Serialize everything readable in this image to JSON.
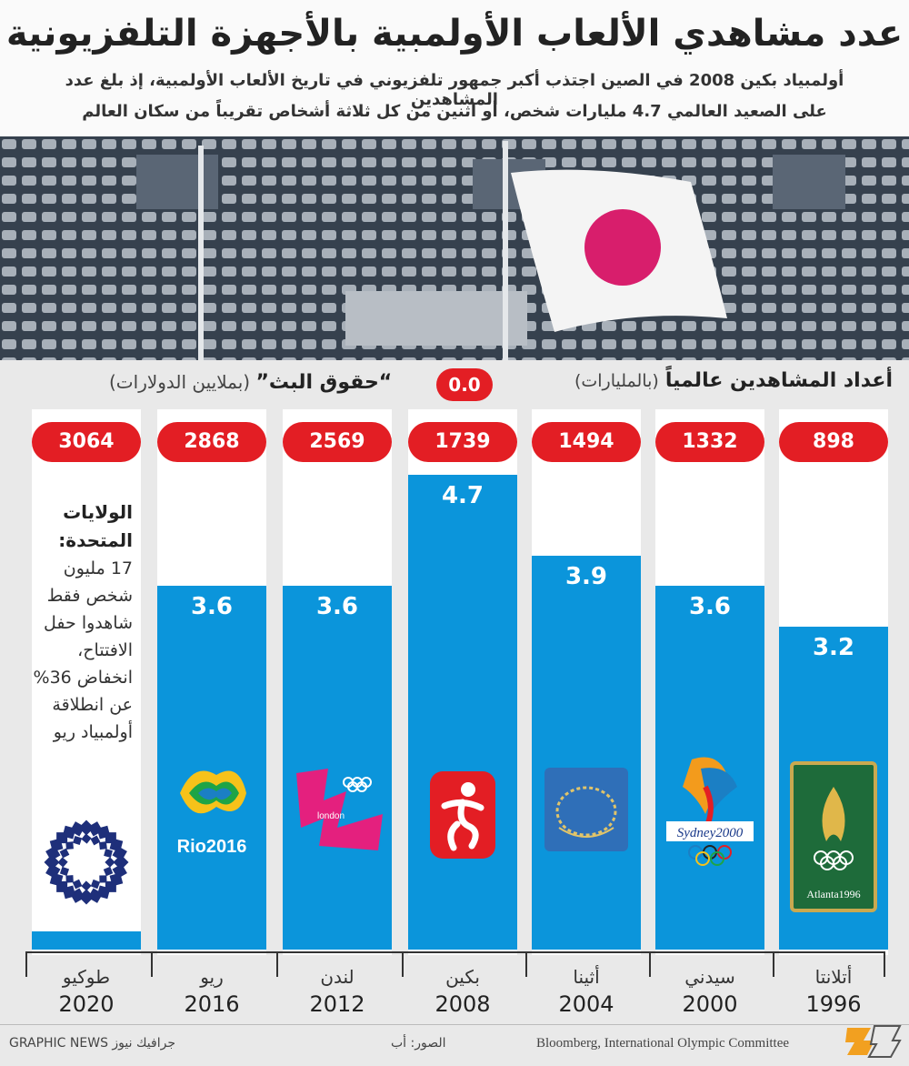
{
  "header": {
    "title": "عدد مشاهدي الألعاب الأولمبية بالأجهزة التلفزيونية",
    "subtitle_line1": "أولمبياد بكين 2008 في الصين اجتذب أكبر جمهور تلفزيوني في تاريخ الألعاب الأولمبية، إذ بلغ عدد المشاهدين",
    "subtitle_line2": "على الصعيد العالمي 4.7 مليارات شخص، أو اثنين من كل ثلاثة أشخاص تقريباً من سكان العالم"
  },
  "legend": {
    "rights_label": "“حقوق البث”",
    "rights_unit": "(بملايين الدولارات)",
    "viewers_label": "أعداد المشاهدين عالمياً",
    "viewers_unit": "(بالمليارات)",
    "zero_marker": "0.0"
  },
  "note": {
    "heading": "الولايات المتحدة:",
    "body": "17 مليون شخص فقط شاهدوا حفل الافتتاح، انخفاض 36% عن انطلاقة أولمبياد ريو"
  },
  "logos": {
    "rio": "Rio2016",
    "london": "london",
    "sydney": "Sydney2000",
    "atlanta": "Atlanta1996"
  },
  "footer": {
    "credit": "GRAPHIC NEWS جرافيك نيوز",
    "photo_credit": "الصور: أب",
    "sources": "Bloomberg, International Olympic Committee"
  },
  "colors": {
    "bar": "#0b95db",
    "pill": "#e31e24"
  },
  "chart_data": {
    "type": "bar",
    "categories": [
      "طوكيو",
      "ريو",
      "لندن",
      "بكين",
      "أثينا",
      "سيدني",
      "أتلانتا"
    ],
    "years": [
      "2020",
      "2016",
      "2012",
      "2008",
      "2004",
      "2000",
      "1996"
    ],
    "series": [
      {
        "name": "أعداد المشاهدين عالمياً",
        "values": [
          null,
          3.6,
          3.6,
          4.7,
          3.9,
          3.6,
          3.2
        ]
      },
      {
        "name": "حقوق البث",
        "values": [
          3064,
          2868,
          2569,
          1739,
          1494,
          1332,
          898
        ]
      }
    ],
    "value_labels": [
      "",
      "3.6",
      "3.6",
      "4.7",
      "3.9",
      "3.6",
      "3.2"
    ],
    "rights_labels": [
      "3064",
      "2868",
      "2569",
      "1739",
      "1494",
      "1332",
      "898"
    ],
    "ylim": [
      0,
      4.7
    ]
  }
}
